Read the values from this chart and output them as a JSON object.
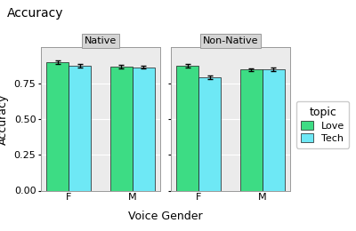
{
  "title": "Accuracy",
  "xlabel": "Voice Gender",
  "ylabel": "Accuracy",
  "facets": [
    "Native",
    "Non-Native"
  ],
  "groups": [
    "F",
    "M"
  ],
  "topics": [
    "Love",
    "Tech"
  ],
  "colors": {
    "Love": "#3ddc84",
    "Tech": "#6ee8f5"
  },
  "bar_edge_color": "#1a1a1a",
  "values": {
    "Native": {
      "F": {
        "Love": 0.895,
        "Tech": 0.872
      },
      "M": {
        "Love": 0.865,
        "Tech": 0.862
      }
    },
    "Non-Native": {
      "F": {
        "Love": 0.872,
        "Tech": 0.793
      },
      "M": {
        "Love": 0.845,
        "Tech": 0.847
      }
    }
  },
  "errors": {
    "Native": {
      "F": {
        "Love": 0.012,
        "Tech": 0.01
      },
      "M": {
        "Love": 0.013,
        "Tech": 0.009
      }
    },
    "Non-Native": {
      "F": {
        "Love": 0.014,
        "Tech": 0.013
      },
      "M": {
        "Love": 0.011,
        "Tech": 0.01
      }
    }
  },
  "ylim": [
    0.0,
    1.0
  ],
  "yticks": [
    0.0,
    0.25,
    0.5,
    0.75
  ],
  "background_color": "#ffffff",
  "panel_bg": "#ebebeb",
  "grid_color": "#ffffff",
  "facet_bg": "#d4d4d4",
  "bar_width": 0.35,
  "legend_title": "topic",
  "legend_title_fontsize": 9,
  "legend_fontsize": 8,
  "axis_label_fontsize": 9,
  "tick_fontsize": 8,
  "title_fontsize": 10
}
